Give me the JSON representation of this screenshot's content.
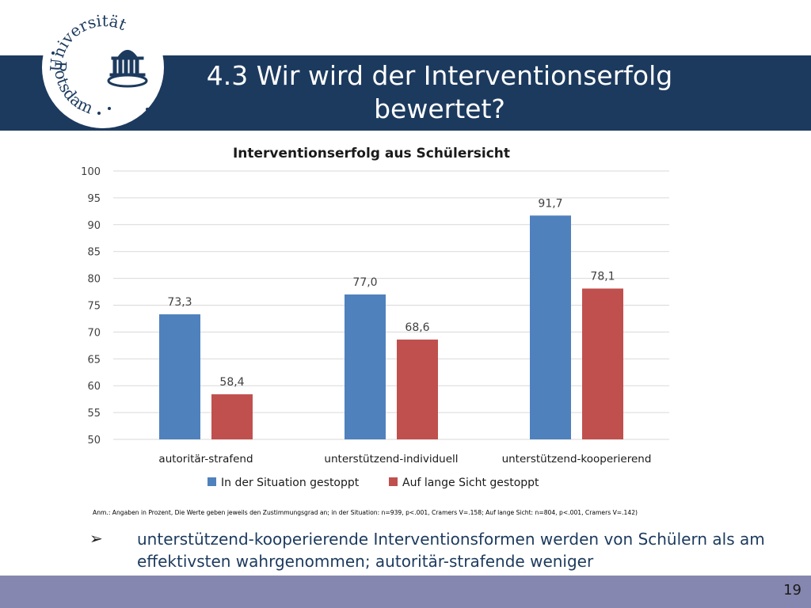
{
  "slide": {
    "title": "4.3 Wir wird der Interventionserfolg bewertet?",
    "page_number": "19"
  },
  "logo": {
    "text_top": "Universität",
    "text_bottom": "Potsdam",
    "color": "#1c3a5e"
  },
  "chart_data": {
    "type": "bar",
    "title": "Interventionserfolg aus Schülersicht",
    "categories": [
      "autoritär-strafend",
      "unterstützend-individuell",
      "unterstützend-kooperierend"
    ],
    "series": [
      {
        "name": "In der Situation gestoppt",
        "values": [
          73.3,
          77.0,
          91.7
        ],
        "labels": [
          "73,3",
          "77,0",
          "91,7"
        ],
        "color": "#4f81bd"
      },
      {
        "name": "Auf lange Sicht gestoppt",
        "values": [
          58.4,
          68.6,
          78.1
        ],
        "labels": [
          "58,4",
          "68,6",
          "78,1"
        ],
        "color": "#c0504d"
      }
    ],
    "ylim": [
      50,
      100
    ],
    "yticks": [
      50,
      55,
      60,
      65,
      70,
      75,
      80,
      85,
      90,
      95,
      100
    ],
    "grid": true,
    "legend": "bottom"
  },
  "note": "Anm.: Angaben in Prozent, Die Werte geben jeweils den Zustimmungsgrad an; in der Situation: n=939, p<.001, Cramers V=.158; Auf lange Sicht: n=804, p<.001, Cramers V=.142)",
  "bullet": {
    "marker": "➢",
    "text": "unterstützend-kooperierende Interventionsformen werden von Schülern als am effektivsten wahrgenommen; autoritär-strafende weniger"
  },
  "colors": {
    "title_bar": "#1c3a5e",
    "footer_bar": "#8687b0",
    "bullet_text": "#1c3a5e"
  }
}
